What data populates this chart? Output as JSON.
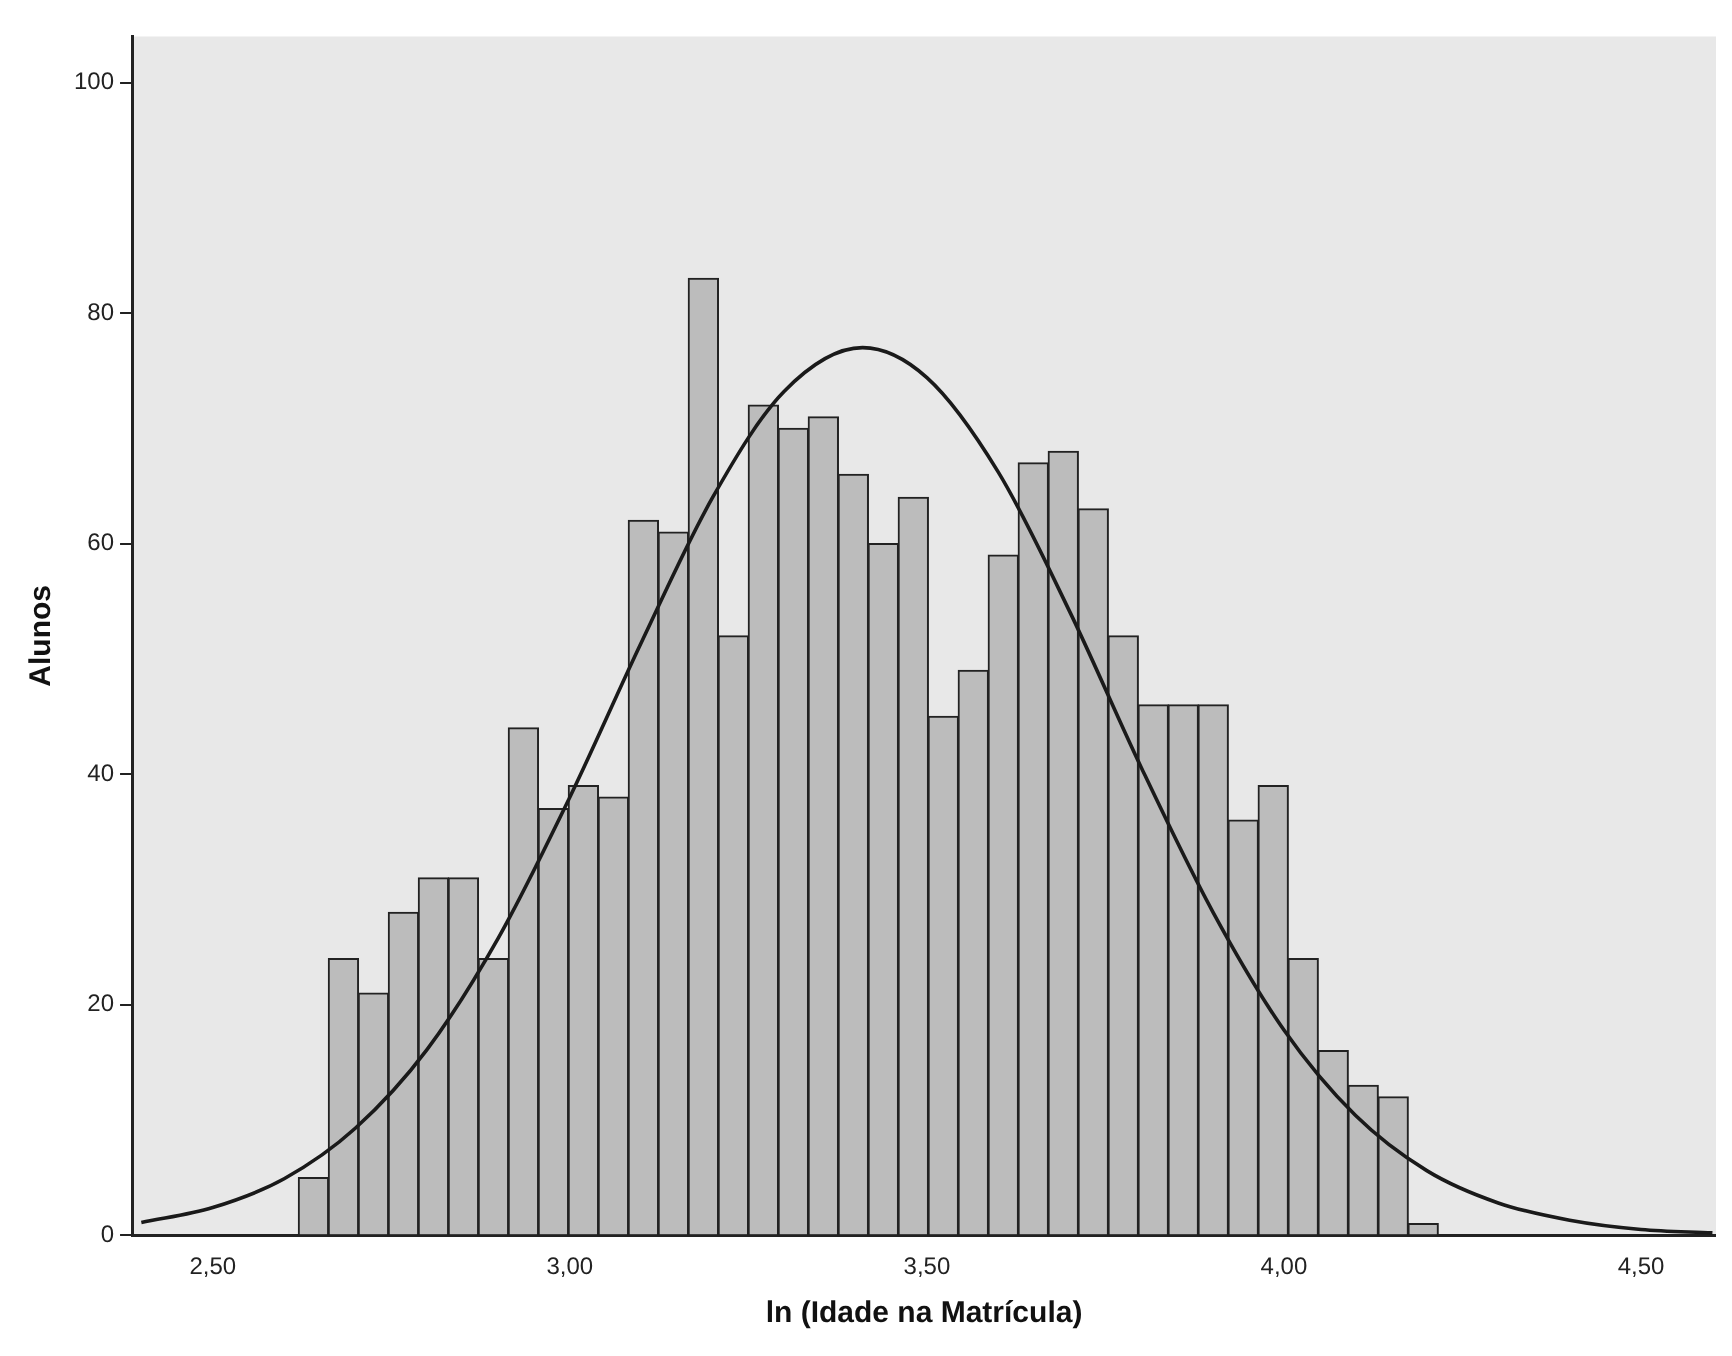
{
  "chart_data": {
    "type": "histogram",
    "xlabel": "ln (Idade na Matrícula)",
    "ylabel": "Alunos",
    "bins": [
      2.62,
      2.662,
      2.704,
      2.746,
      2.788,
      2.83,
      2.872,
      2.914,
      2.956,
      2.998,
      3.04,
      3.082,
      3.124,
      3.166,
      3.208,
      3.25,
      3.292,
      3.334,
      3.376,
      3.418,
      3.46,
      3.502,
      3.544,
      3.586,
      3.628,
      3.67,
      3.712,
      3.754,
      3.796,
      3.838,
      3.88,
      3.922,
      3.964,
      4.006,
      4.048,
      4.09,
      4.132,
      4.174,
      4.216
    ],
    "values": [
      5,
      24,
      21,
      28,
      31,
      31,
      24,
      44,
      37,
      39,
      38,
      62,
      61,
      83,
      52,
      72,
      70,
      71,
      66,
      60,
      64,
      45,
      49,
      59,
      67,
      68,
      63,
      52,
      46,
      46,
      46,
      36,
      39,
      24,
      16,
      13,
      12,
      1
    ],
    "color": "#bcbcbc",
    "series": [
      {
        "type": "line",
        "color": "#1a1a1a",
        "x": [
          2.4,
          2.5,
          2.6,
          2.7,
          2.8,
          2.9,
          3.0,
          3.1,
          3.2,
          3.3,
          3.41,
          3.5,
          3.6,
          3.7,
          3.8,
          3.9,
          4.0,
          4.1,
          4.2,
          4.3,
          4.4,
          4.5,
          4.6
        ],
        "values": [
          1.1,
          2.4,
          4.9,
          9.3,
          16.1,
          25.8,
          38,
          51.4,
          64.0,
          73.2,
          77,
          74.4,
          66.2,
          54.1,
          40.6,
          28.1,
          17.8,
          10.4,
          5.6,
          2.8,
          1.3,
          0.5,
          0.2
        ]
      }
    ],
    "xlim": [
      2.387,
      4.605
    ],
    "xticks": [
      {
        "value": 2.5,
        "label": "2,50"
      },
      {
        "value": 3.0,
        "label": "3,00"
      },
      {
        "value": 3.5,
        "label": "3,50"
      },
      {
        "value": 4.0,
        "label": "4,00"
      },
      {
        "value": 4.5,
        "label": "4,50"
      }
    ],
    "ylim": [
      0,
      104
    ],
    "yticks": [
      0,
      20,
      40,
      60,
      80,
      100
    ],
    "grid": false,
    "legend": false,
    "marker": "none",
    "line_style": "solid"
  }
}
